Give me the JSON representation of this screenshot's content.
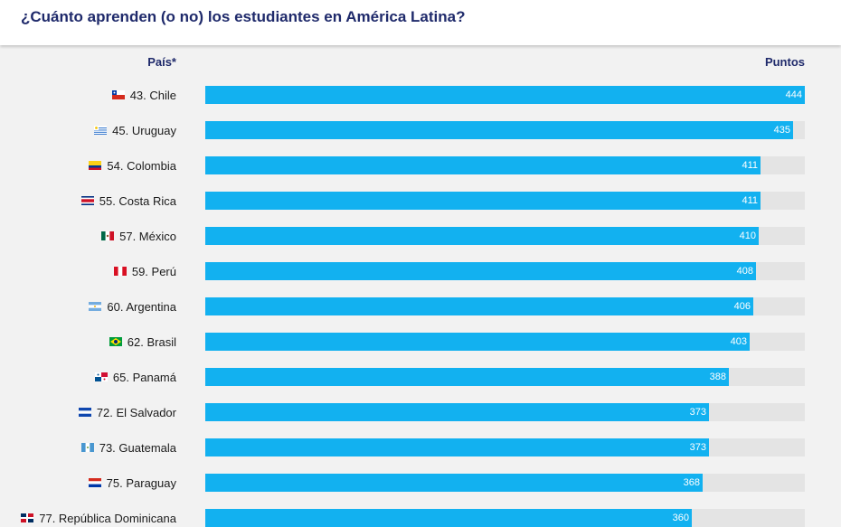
{
  "header": {
    "title": "¿Cuánto aprenden (o no) los estudiantes en América Latina?"
  },
  "columns": {
    "country": "País*",
    "points": "Puntos"
  },
  "colors": {
    "bar": "#12b1f0",
    "track": "#e4e4e4",
    "title": "#1f2a6b"
  },
  "chart_data": {
    "type": "bar",
    "orientation": "horizontal",
    "categories": [
      "43. Chile",
      "45. Uruguay",
      "54. Colombia",
      "55. Costa Rica",
      "57. México",
      "59. Perú",
      "60. Argentina",
      "62. Brasil",
      "65. Panamá",
      "72. El Salvador",
      "73. Guatemala",
      "75. Paraguay",
      "77. República Dominicana"
    ],
    "values": [
      444,
      435,
      411,
      411,
      410,
      408,
      406,
      403,
      388,
      373,
      373,
      368,
      360
    ],
    "flags": [
      "chile",
      "uruguay",
      "colombia",
      "costa-rica",
      "mexico",
      "peru",
      "argentina",
      "brasil",
      "panama",
      "el-salvador",
      "guatemala",
      "paraguay",
      "republica-dominicana"
    ],
    "xlim": [
      0,
      444
    ],
    "grid": false,
    "legend": "none"
  }
}
